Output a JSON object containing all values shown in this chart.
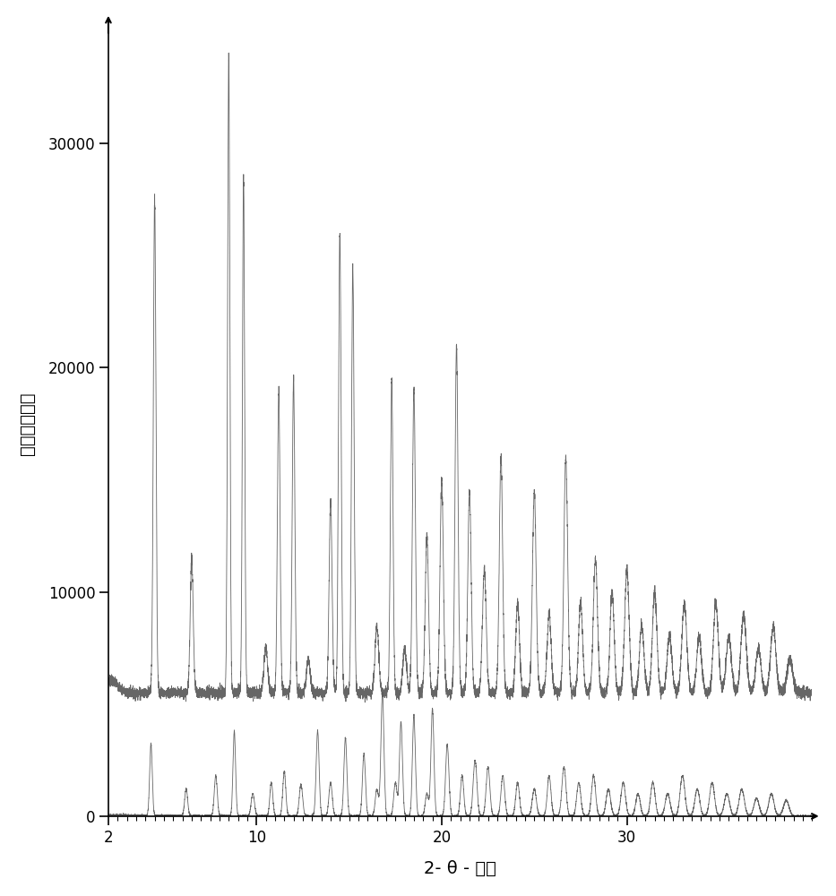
{
  "xlabel": "2- θ - 范围",
  "ylabel": "强度（计数）",
  "xlim": [
    2,
    40
  ],
  "ylim": [
    0,
    35000
  ],
  "yticks": [
    0,
    10000,
    20000,
    30000
  ],
  "xticks": [
    2,
    10,
    20,
    30
  ],
  "line_color": "#555555",
  "upper_baseline": 5500,
  "upper_noise": 120,
  "lower_baseline": 0,
  "lower_noise": 25
}
